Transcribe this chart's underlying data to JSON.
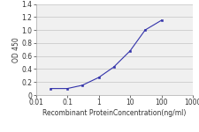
{
  "x": [
    0.03,
    0.1,
    0.3,
    1,
    3,
    10,
    30,
    100
  ],
  "y": [
    0.1,
    0.1,
    0.15,
    0.27,
    0.43,
    0.68,
    1.0,
    1.15
  ],
  "line_color": "#3333aa",
  "marker": "s",
  "marker_size": 2.0,
  "xlabel": "Recombinant ProteinConcentration(ng/ml)",
  "ylabel": "OD 450",
  "xlim": [
    0.01,
    1000
  ],
  "ylim": [
    0,
    1.4
  ],
  "yticks": [
    0,
    0.2,
    0.4,
    0.6,
    0.8,
    1.0,
    1.2,
    1.4
  ],
  "xtick_vals": [
    0.01,
    0.1,
    1,
    10,
    100,
    1000
  ],
  "xtick_labels": [
    "0.01",
    "0.1",
    "1",
    "10",
    "100",
    "1000"
  ],
  "grid_color": "#cccccc",
  "bg_color": "#f0f0f0",
  "label_fontsize": 5.5,
  "tick_fontsize": 5.5
}
